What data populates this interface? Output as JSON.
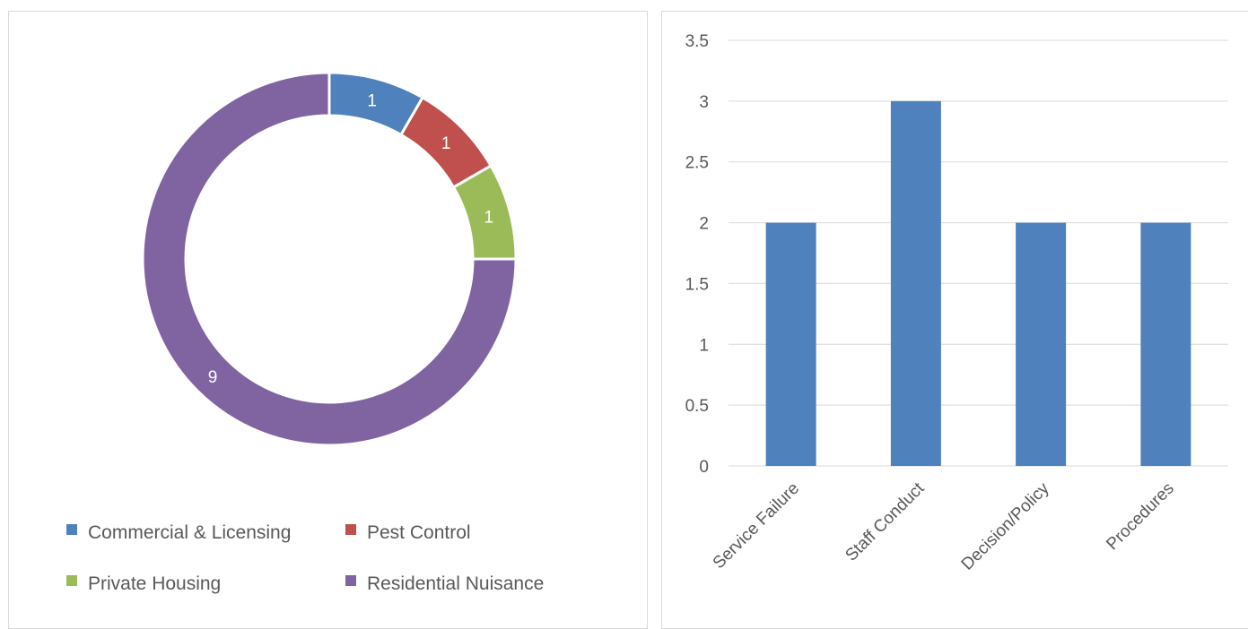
{
  "chart_data": [
    {
      "type": "pie",
      "donut": true,
      "title": "",
      "categories": [
        "Commercial & Licensing",
        "Pest Control",
        "Private Housing",
        "Residential Nuisance"
      ],
      "values": [
        1,
        1,
        1,
        9
      ],
      "data_labels": [
        "1",
        "1",
        "1",
        "9"
      ],
      "colors": [
        "#4f81bd",
        "#c0504d",
        "#9bbb59",
        "#8064a2"
      ],
      "legend_position": "bottom"
    },
    {
      "type": "bar",
      "title": "",
      "categories": [
        "Service Failure",
        "Staff Conduct",
        "Decision/Policy",
        "Procedures"
      ],
      "values": [
        2,
        3,
        2,
        2
      ],
      "ylim": [
        0,
        3.5
      ],
      "yticks": [
        "0",
        "0.5",
        "1",
        "1.5",
        "2",
        "2.5",
        "3",
        "3.5"
      ],
      "color": "#4f81bd",
      "grid": true,
      "xlabel": "",
      "ylabel": ""
    }
  ]
}
